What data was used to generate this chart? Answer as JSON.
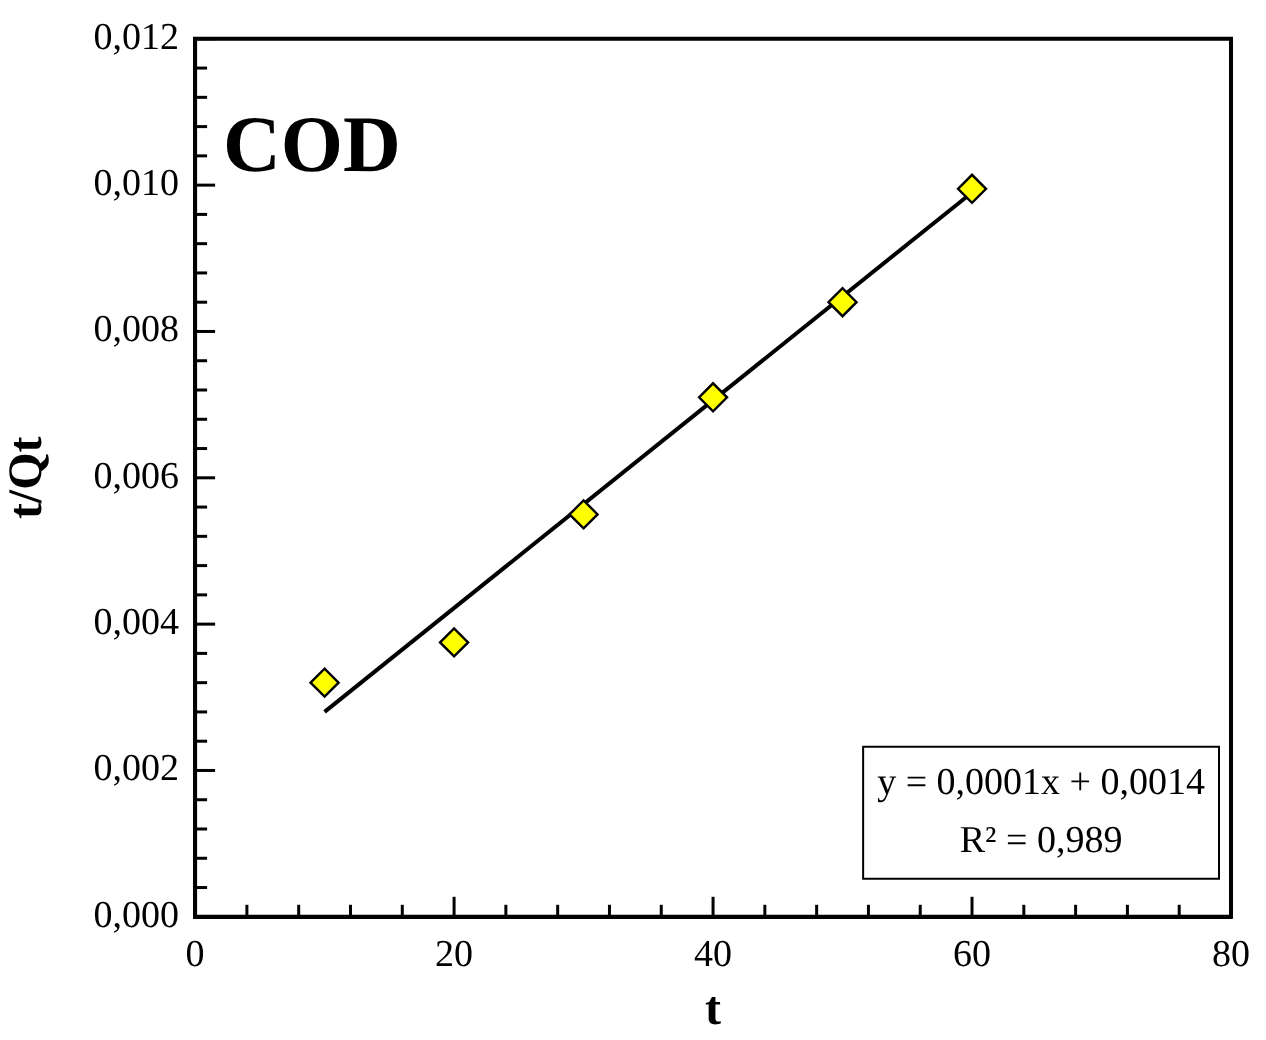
{
  "chart_data": {
    "type": "scatter",
    "title": "COD",
    "xlabel": "t",
    "ylabel": "t/Qt",
    "annotations": [
      "y = 0,0001x + 0,0014",
      "R² = 0,989"
    ],
    "series": [
      {
        "type": "scatter",
        "x": [
          10,
          20,
          30,
          40,
          50,
          60
        ],
        "values": [
          0.0032,
          0.00375,
          0.0055,
          0.0071,
          0.0084,
          0.00995
        ],
        "color": "#ffff00"
      },
      {
        "type": "line",
        "x": [
          10,
          60
        ],
        "values": [
          0.0028,
          0.0099
        ],
        "color": "#000000",
        "marker": "none"
      }
    ],
    "marker": "diamond",
    "grid": false,
    "legend": false,
    "xlim": [
      0,
      80
    ],
    "ylim": [
      0,
      0.012
    ],
    "xticks": [
      0,
      {
        "value": 4,
        "label": null
      },
      {
        "value": 8,
        "label": null
      },
      {
        "value": 12,
        "label": null
      },
      {
        "value": 16,
        "label": null
      },
      20,
      {
        "value": 24,
        "label": null
      },
      {
        "value": 28,
        "label": null
      },
      {
        "value": 32,
        "label": null
      },
      {
        "value": 36,
        "label": null
      },
      40,
      {
        "value": 44,
        "label": null
      },
      {
        "value": 48,
        "label": null
      },
      {
        "value": 52,
        "label": null
      },
      {
        "value": 56,
        "label": null
      },
      60,
      {
        "value": 64,
        "label": null
      },
      {
        "value": 68,
        "label": null
      },
      {
        "value": 72,
        "label": null
      },
      {
        "value": 76,
        "label": null
      },
      80
    ],
    "yticks": [
      {
        "value": 0,
        "label": "0,000"
      },
      {
        "value": 0.0004,
        "label": null
      },
      {
        "value": 0.0008,
        "label": null
      },
      {
        "value": 0.0012,
        "label": null
      },
      {
        "value": 0.0016,
        "label": null
      },
      {
        "value": 0.002,
        "label": "0,002"
      },
      {
        "value": 0.0024,
        "label": null
      },
      {
        "value": 0.0028,
        "label": null
      },
      {
        "value": 0.0032,
        "label": null
      },
      {
        "value": 0.0036,
        "label": null
      },
      {
        "value": 0.004,
        "label": "0,004"
      },
      {
        "value": 0.0044,
        "label": null
      },
      {
        "value": 0.0048,
        "label": null
      },
      {
        "value": 0.0052,
        "label": null
      },
      {
        "value": 0.0056,
        "label": null
      },
      {
        "value": 0.006,
        "label": "0,006"
      },
      {
        "value": 0.0064,
        "label": null
      },
      {
        "value": 0.0068,
        "label": null
      },
      {
        "value": 0.0072,
        "label": null
      },
      {
        "value": 0.0076,
        "label": null
      },
      {
        "value": 0.008,
        "label": "0,008"
      },
      {
        "value": 0.0084,
        "label": null
      },
      {
        "value": 0.0088,
        "label": null
      },
      {
        "value": 0.0092,
        "label": null
      },
      {
        "value": 0.0096,
        "label": null
      },
      {
        "value": 0.01,
        "label": "0,010"
      },
      {
        "value": 0.0104,
        "label": null
      },
      {
        "value": 0.0108,
        "label": null
      },
      {
        "value": 0.0112,
        "label": null
      },
      {
        "value": 0.0116,
        "label": null
      },
      {
        "value": 0.012,
        "label": "0,012"
      }
    ]
  }
}
